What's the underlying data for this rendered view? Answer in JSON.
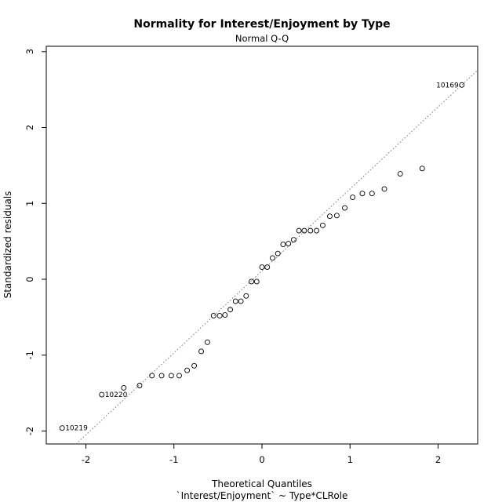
{
  "chart_data": {
    "type": "scatter",
    "title": "Normality for Interest/Enjoyment by Type",
    "subtitle": "Normal Q-Q",
    "xlabel": "Theoretical Quantiles",
    "xlabel2": "`Interest/Enjoyment` ~ Type*CLRole",
    "ylabel": "Standardized residuals",
    "xlim": [
      -2.45,
      2.45
    ],
    "ylim": [
      -2.17,
      3.07
    ],
    "xticks": [
      "-2",
      "-1",
      "0",
      "1",
      "2"
    ],
    "yticks": [
      "-2",
      "-1",
      "0",
      "1",
      "2",
      "3"
    ],
    "grid": false,
    "reference_line": {
      "slope": 1.08,
      "intercept": 0.11
    },
    "points": [
      {
        "x": -2.27,
        "y": -1.96
      },
      {
        "x": -1.82,
        "y": -1.52
      },
      {
        "x": -1.57,
        "y": -1.43
      },
      {
        "x": -1.39,
        "y": -1.4
      },
      {
        "x": -1.25,
        "y": -1.27
      },
      {
        "x": -1.14,
        "y": -1.27
      },
      {
        "x": -1.03,
        "y": -1.27
      },
      {
        "x": -0.94,
        "y": -1.27
      },
      {
        "x": -0.85,
        "y": -1.2
      },
      {
        "x": -0.77,
        "y": -1.14
      },
      {
        "x": -0.69,
        "y": -0.95
      },
      {
        "x": -0.62,
        "y": -0.83
      },
      {
        "x": -0.55,
        "y": -0.48
      },
      {
        "x": -0.48,
        "y": -0.48
      },
      {
        "x": -0.42,
        "y": -0.47
      },
      {
        "x": -0.36,
        "y": -0.4
      },
      {
        "x": -0.3,
        "y": -0.29
      },
      {
        "x": -0.24,
        "y": -0.29
      },
      {
        "x": -0.18,
        "y": -0.22
      },
      {
        "x": -0.12,
        "y": -0.03
      },
      {
        "x": -0.06,
        "y": -0.03
      },
      {
        "x": 0.0,
        "y": 0.16
      },
      {
        "x": 0.06,
        "y": 0.16
      },
      {
        "x": 0.12,
        "y": 0.28
      },
      {
        "x": 0.18,
        "y": 0.34
      },
      {
        "x": 0.24,
        "y": 0.46
      },
      {
        "x": 0.3,
        "y": 0.47
      },
      {
        "x": 0.36,
        "y": 0.52
      },
      {
        "x": 0.42,
        "y": 0.64
      },
      {
        "x": 0.48,
        "y": 0.64
      },
      {
        "x": 0.55,
        "y": 0.64
      },
      {
        "x": 0.62,
        "y": 0.64
      },
      {
        "x": 0.69,
        "y": 0.71
      },
      {
        "x": 0.77,
        "y": 0.83
      },
      {
        "x": 0.85,
        "y": 0.84
      },
      {
        "x": 0.94,
        "y": 0.94
      },
      {
        "x": 1.03,
        "y": 1.08
      },
      {
        "x": 1.14,
        "y": 1.13
      },
      {
        "x": 1.25,
        "y": 1.13
      },
      {
        "x": 1.39,
        "y": 1.19
      },
      {
        "x": 1.57,
        "y": 1.39
      },
      {
        "x": 1.82,
        "y": 1.46
      },
      {
        "x": 2.27,
        "y": 2.56
      }
    ],
    "labeled_points": [
      {
        "label": "10219",
        "x": -2.27,
        "y": -1.96,
        "side": "right"
      },
      {
        "label": "10220",
        "x": -1.82,
        "y": -1.52,
        "side": "right"
      },
      {
        "label": "10169",
        "x": 2.27,
        "y": 2.56,
        "side": "left"
      }
    ]
  }
}
